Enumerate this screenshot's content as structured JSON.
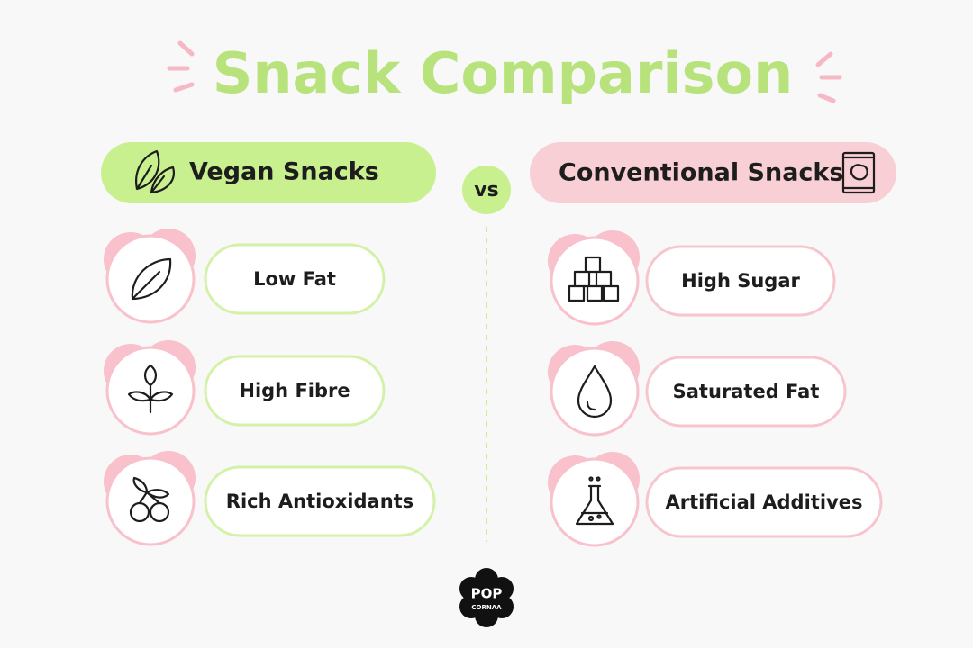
{
  "title": "Snack Comparison",
  "left": {
    "heading": "Vegan Snacks",
    "items": [
      "Low Fat",
      "High Fibre",
      "Rich Antioxidants"
    ]
  },
  "vs": "vs",
  "right": {
    "heading": "Conventional Snacks",
    "items": [
      "High Sugar",
      "Saturated Fat",
      "Artificial Additives"
    ]
  },
  "logo": {
    "top": "POP",
    "bottom": "CORNAA"
  }
}
